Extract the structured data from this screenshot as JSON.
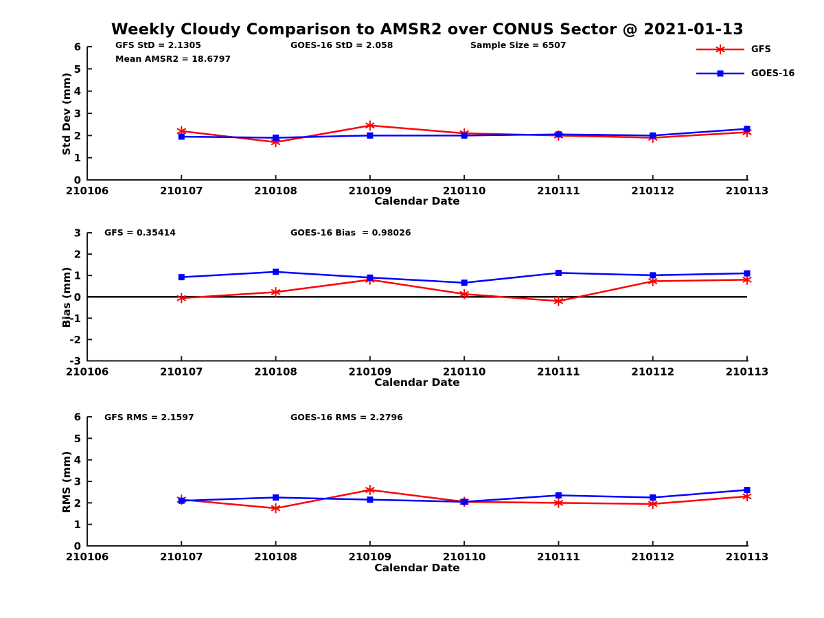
{
  "title": "Weekly Cloudy Comparison to AMSR2 over CONUS Sector @ 2021-01-13",
  "colors": {
    "axis": "#1a1a1a",
    "zero_line": "#000000",
    "gfs": "#ff0000",
    "goes16": "#0000ff"
  },
  "legend": [
    {
      "label": "GFS",
      "color": "#ff0000",
      "marker": "asterisk"
    },
    {
      "label": "GOES-16",
      "color": "#0000ff",
      "marker": "square"
    }
  ],
  "chart_data": [
    {
      "type": "line",
      "ylabel": "Std Dev (mm)",
      "xlabel": "Calendar Date",
      "ylim": [
        0,
        6
      ],
      "yticks": [
        0,
        1,
        2,
        3,
        4,
        5,
        6
      ],
      "x_categories": [
        "210106",
        "210107",
        "210108",
        "210109",
        "210110",
        "210111",
        "210112",
        "210113"
      ],
      "annotations": {
        "left1": "GFS StD = 2.1305",
        "left2": "Mean AMSR2 = 18.6797",
        "mid": "GOES-16 StD = 2.058",
        "right": "Sample Size = 6507"
      },
      "series": [
        {
          "name": "GFS",
          "color": "#ff0000",
          "marker": "asterisk",
          "x": [
            "210107",
            "210108",
            "210109",
            "210110",
            "210111",
            "210112",
            "210113"
          ],
          "values": [
            2.2,
            1.7,
            2.45,
            2.1,
            2.0,
            1.9,
            2.15
          ]
        },
        {
          "name": "GOES-16",
          "color": "#0000ff",
          "marker": "square",
          "x": [
            "210107",
            "210108",
            "210109",
            "210110",
            "210111",
            "210112",
            "210113"
          ],
          "values": [
            1.95,
            1.9,
            2.0,
            2.0,
            2.05,
            2.0,
            2.3
          ]
        }
      ]
    },
    {
      "type": "line",
      "ylabel": "Bias (mm)",
      "xlabel": "Calendar Date",
      "ylim": [
        -3,
        3
      ],
      "yticks": [
        -3,
        -2,
        -1,
        0,
        1,
        2,
        3
      ],
      "zero_line": true,
      "x_categories": [
        "210106",
        "210107",
        "210108",
        "210109",
        "210110",
        "210111",
        "210112",
        "210113"
      ],
      "annotations": {
        "left1": "GFS = 0.35414",
        "mid": "GOES-16 Bias  = 0.98026"
      },
      "series": [
        {
          "name": "GFS",
          "color": "#ff0000",
          "marker": "asterisk",
          "x": [
            "210107",
            "210108",
            "210109",
            "210110",
            "210111",
            "210112",
            "210113"
          ],
          "values": [
            -0.06,
            0.22,
            0.8,
            0.13,
            -0.2,
            0.73,
            0.8
          ]
        },
        {
          "name": "GOES-16",
          "color": "#0000ff",
          "marker": "square",
          "x": [
            "210107",
            "210108",
            "210109",
            "210110",
            "210111",
            "210112",
            "210113"
          ],
          "values": [
            0.92,
            1.17,
            0.9,
            0.66,
            1.12,
            1.01,
            1.1
          ]
        }
      ]
    },
    {
      "type": "line",
      "ylabel": "RMS (mm)",
      "xlabel": "Calendar Date",
      "ylim": [
        0,
        6
      ],
      "yticks": [
        0,
        1,
        2,
        3,
        4,
        5,
        6
      ],
      "x_categories": [
        "210106",
        "210107",
        "210108",
        "210109",
        "210110",
        "210111",
        "210112",
        "210113"
      ],
      "annotations": {
        "left1": "GFS RMS = 2.1597",
        "mid": "GOES-16 RMS = 2.2796"
      },
      "series": [
        {
          "name": "GFS",
          "color": "#ff0000",
          "marker": "asterisk",
          "x": [
            "210107",
            "210108",
            "210109",
            "210110",
            "210111",
            "210112",
            "210113"
          ],
          "values": [
            2.15,
            1.75,
            2.6,
            2.05,
            2.0,
            1.95,
            2.3
          ]
        },
        {
          "name": "GOES-16",
          "color": "#0000ff",
          "marker": "square",
          "x": [
            "210107",
            "210108",
            "210109",
            "210110",
            "210111",
            "210112",
            "210113"
          ],
          "values": [
            2.1,
            2.25,
            2.15,
            2.05,
            2.35,
            2.25,
            2.6
          ]
        }
      ]
    }
  ]
}
